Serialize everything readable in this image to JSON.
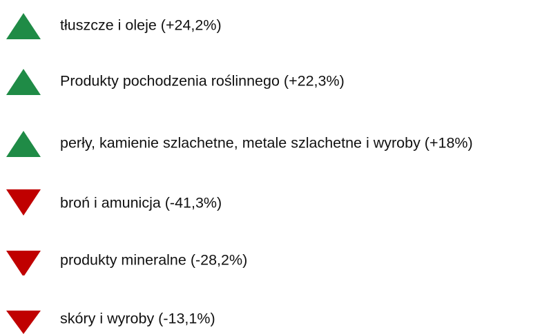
{
  "items": [
    "tłuszcze i oleje (+24,2%)",
    "Produkty pochodzenia roślinnego (+22,3%)",
    "perły, kamienie szlachetne, metale szlachetne i wyroby (+18%)",
    "broń i amunicja (-41,3%)",
    "produkty mineralne (-28,2%)",
    "skóry i wyroby (-13,1%)"
  ]
}
